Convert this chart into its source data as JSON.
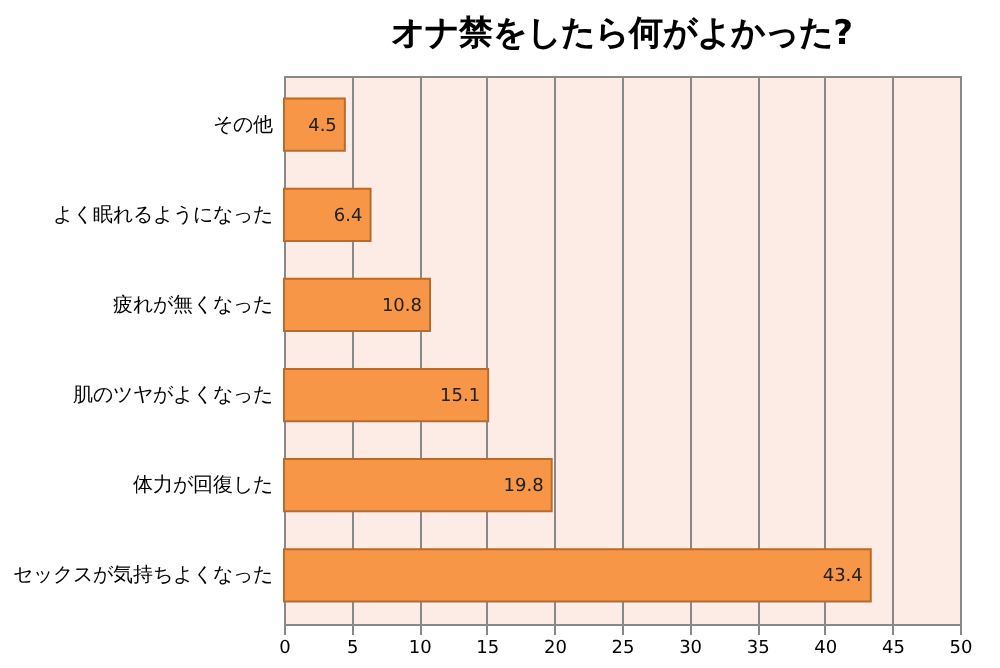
{
  "chart_data": {
    "type": "bar",
    "orientation": "horizontal",
    "title": "オナ禁をしたら何がよかった?",
    "categories": [
      "その他",
      "よく眠れるようになった",
      "疲れが無くなった",
      "肌のツヤがよくなった",
      "体力が回復した",
      "セックスが気持ちよくなった"
    ],
    "values": [
      4.5,
      6.4,
      10.8,
      15.1,
      19.8,
      43.4
    ],
    "color": "#f79646",
    "xlim": [
      0,
      50
    ],
    "xticks": [
      0,
      5,
      10,
      15,
      20,
      25,
      30,
      35,
      40,
      45,
      50
    ],
    "grid": "x",
    "data_labels": true
  }
}
